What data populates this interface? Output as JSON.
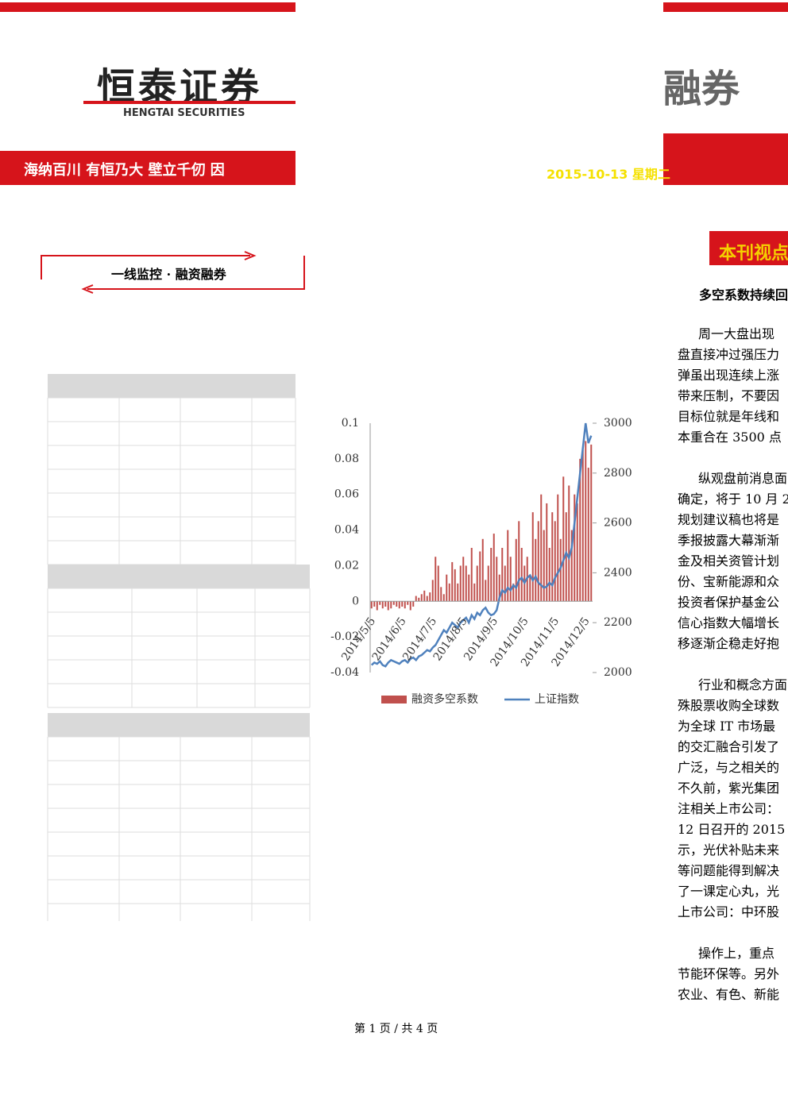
{
  "header": {
    "logo": "恒泰证券",
    "logo_en": "HENGTAI SECURITIES",
    "slogan": "海纳百川 有恒乃大 壁立千仞 因",
    "right_logo": "融券",
    "date": "2015-10-13 星期二"
  },
  "section": "一线监控 · 融资融券",
  "sidebar": {
    "title": "本刊视点",
    "heading": "多空系数持续回",
    "paragraphs": [
      [
        "周一大盘出现",
        "盘直接冲过强压力",
        "弹虽出现连续上涨",
        "带来压制，不要因",
        "目标位就是年线和",
        "本重合在 3500 点"
      ],
      [
        "纵观盘前消息面",
        "确定，将于 10 月 2",
        "规划建议稿也将是",
        "季报披露大幕渐渐",
        "金及相关资管计划",
        "份、宝新能源和众",
        "投资者保护基金公",
        "信心指数大幅增长",
        "移逐渐企稳走好抱"
      ],
      [
        "行业和概念方面",
        "殊股票收购全球数",
        "为全球 IT 市场最",
        "的交汇融合引发了",
        "广泛，与之相关的",
        "不久前，紫光集团",
        "注相关上市公司：",
        "12 日召开的 2015",
        "示，光伏补贴未来",
        "等问题能得到解决",
        "了一课定心丸，光",
        "上市公司：中环股"
      ],
      [
        "操作上，重点",
        "节能环保等。另外",
        "农业、有色、新能"
      ]
    ]
  },
  "chart_data": {
    "type": "bar-line",
    "categories": [
      "2014/5/5",
      null,
      null,
      null,
      null,
      null,
      null,
      null,
      null,
      null,
      null,
      "2014/6/5",
      null,
      null,
      null,
      null,
      null,
      null,
      null,
      null,
      null,
      null,
      "2014/7/5",
      null,
      null,
      null,
      null,
      null,
      null,
      null,
      null,
      null,
      null,
      "2014/8/5",
      null,
      null,
      null,
      null,
      null,
      null,
      null,
      null,
      null,
      null,
      "2014/9/5",
      null,
      null,
      null,
      null,
      null,
      null,
      null,
      null,
      null,
      null,
      "2014/10/5",
      null,
      null,
      null,
      null,
      null,
      null,
      null,
      null,
      null,
      null,
      "2014/11/5",
      null,
      null,
      null,
      null,
      null,
      null,
      null,
      null,
      null,
      null,
      "2014/12/5",
      null,
      null
    ],
    "series": [
      {
        "name": "融资多空系数",
        "color": "#c0504d",
        "values": [
          -0.004,
          -0.003,
          -0.005,
          -0.002,
          -0.004,
          -0.003,
          -0.005,
          -0.004,
          -0.002,
          -0.003,
          -0.004,
          -0.003,
          -0.004,
          -0.002,
          -0.005,
          -0.003,
          0.003,
          0.002,
          0.004,
          0.006,
          0.003,
          0.005,
          0.012,
          0.025,
          0.02,
          0.008,
          0.004,
          0.015,
          0.01,
          0.022,
          0.018,
          0.01,
          0.02,
          0.025,
          0.02,
          0.015,
          0.03,
          0.01,
          0.02,
          0.028,
          0.035,
          0.012,
          0.02,
          0.03,
          0.038,
          0.025,
          0.015,
          0.03,
          0.02,
          0.04,
          0.025,
          0.01,
          0.035,
          0.045,
          0.03,
          0.02,
          0.025,
          0.015,
          0.05,
          0.035,
          0.045,
          0.06,
          0.04,
          0.055,
          0.03,
          0.05,
          0.045,
          0.06,
          0.035,
          0.07,
          0.05,
          0.065,
          0.04,
          0.06,
          0.055,
          0.08,
          0.085,
          0.09,
          0.075,
          0.088
        ]
      },
      {
        "name": "上证指数",
        "color": "#4f81bd",
        "axis": "y2",
        "values": [
          2030,
          2040,
          2035,
          2045,
          2030,
          2025,
          2040,
          2050,
          2045,
          2040,
          2035,
          2045,
          2050,
          2040,
          2055,
          2060,
          2050,
          2065,
          2070,
          2080,
          2090,
          2085,
          2100,
          2110,
          2130,
          2150,
          2170,
          2160,
          2180,
          2200,
          2190,
          2180,
          2200,
          2210,
          2220,
          2200,
          2230,
          2215,
          2240,
          2230,
          2250,
          2260,
          2240,
          2230,
          2235,
          2250,
          2300,
          2330,
          2320,
          2340,
          2330,
          2350,
          2340,
          2370,
          2380,
          2360,
          2380,
          2390,
          2370,
          2385,
          2360,
          2350,
          2340,
          2345,
          2360,
          2350,
          2380,
          2400,
          2420,
          2450,
          2480,
          2460,
          2500,
          2600,
          2700,
          2800,
          2900,
          3000,
          2920,
          2950
        ]
      }
    ],
    "ylim": [
      -0.04,
      0.1
    ],
    "yticks": [
      -0.04,
      -0.02,
      0,
      0.02,
      0.04,
      0.06,
      0.08,
      0.1
    ],
    "y2lim": [
      2000,
      3000
    ],
    "y2ticks": [
      2000,
      2200,
      2400,
      2600,
      2800,
      3000
    ]
  },
  "footer": "第 1 页 / 共 4 页"
}
